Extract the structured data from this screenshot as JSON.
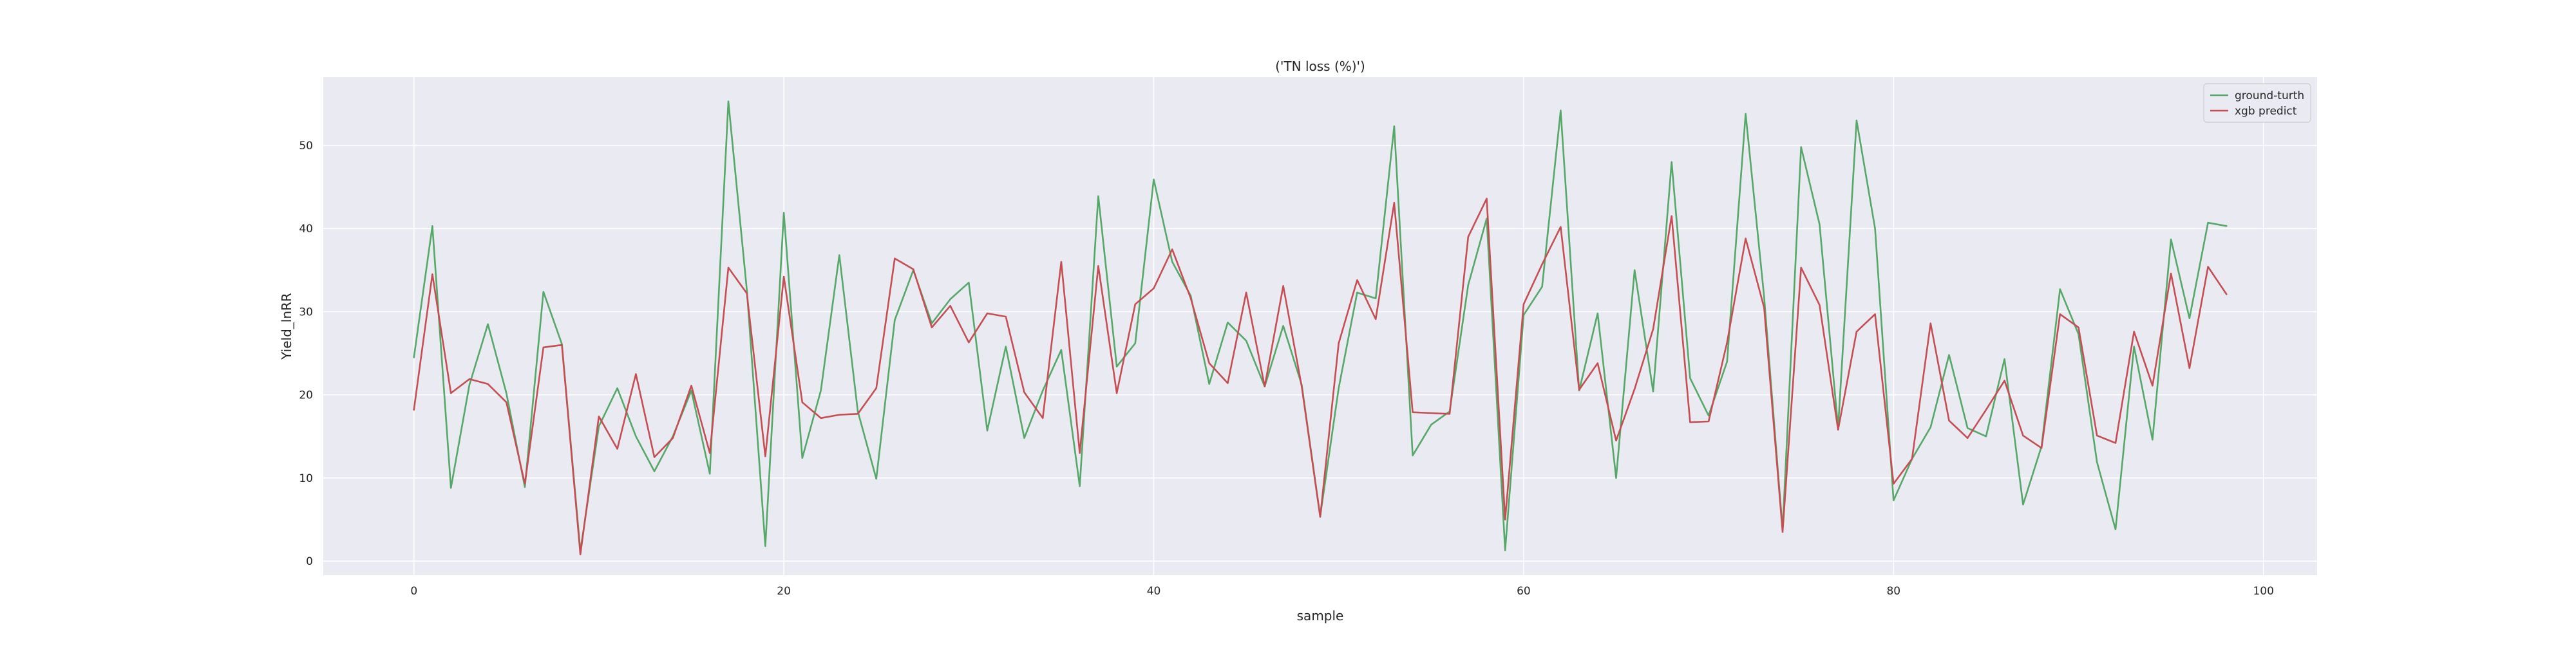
{
  "chart_data": {
    "type": "line",
    "title": "('TN loss (%)')",
    "xlabel": "sample",
    "ylabel": "Yield_lnRR",
    "xlim": [
      -4.9,
      102.9
    ],
    "ylim": [
      -1.7,
      58.2
    ],
    "xticks": [
      0,
      20,
      40,
      60,
      80,
      100
    ],
    "yticks": [
      0,
      10,
      20,
      30,
      40,
      50
    ],
    "grid": true,
    "legend_position": "top-right",
    "background_color": "#eaeaf2",
    "series": [
      {
        "name": "ground-turth",
        "color": "#55a868",
        "x": [
          0,
          1,
          2,
          3,
          4,
          5,
          6,
          7,
          8,
          9,
          10,
          11,
          12,
          13,
          14,
          15,
          16,
          17,
          18,
          19,
          20,
          21,
          22,
          23,
          24,
          25,
          26,
          27,
          28,
          29,
          30,
          31,
          32,
          33,
          34,
          35,
          36,
          37,
          38,
          39,
          40,
          41,
          42,
          43,
          44,
          45,
          46,
          47,
          48,
          49,
          50,
          51,
          52,
          53,
          54,
          55,
          56,
          57,
          58,
          59,
          60,
          61,
          62,
          63,
          64,
          65,
          66,
          67,
          68,
          69,
          70,
          71,
          72,
          73,
          74,
          75,
          76,
          77,
          78,
          79,
          80,
          81,
          82,
          83,
          84,
          85,
          86,
          87,
          88,
          89,
          90,
          91,
          92,
          93,
          94,
          95,
          96,
          97,
          98
        ],
        "values": [
          24.5,
          40.3,
          8.8,
          21.2,
          28.5,
          20.2,
          8.9,
          32.4,
          26.1,
          1.2,
          16.2,
          20.8,
          15.0,
          10.8,
          15.0,
          20.5,
          10.5,
          55.3,
          32.6,
          1.8,
          41.9,
          12.4,
          20.5,
          36.8,
          18.0,
          9.9,
          29.0,
          35.0,
          28.6,
          31.5,
          33.5,
          15.7,
          25.8,
          14.8,
          20.5,
          25.4,
          9.0,
          43.9,
          23.4,
          26.2,
          45.9,
          36.0,
          31.9,
          21.3,
          28.7,
          26.5,
          21.0,
          28.3,
          21.2,
          5.4,
          20.8,
          32.3,
          31.6,
          52.3,
          12.7,
          16.4,
          18.0,
          33.2,
          41.2,
          1.3,
          29.6,
          33.0,
          54.2,
          20.5,
          29.8,
          10.0,
          35.0,
          20.4,
          48.0,
          22.0,
          17.5,
          24.0,
          53.8,
          31.8,
          3.8,
          49.8,
          40.5,
          16.0,
          53.0,
          40.0,
          7.3,
          12.3,
          16.1,
          24.8,
          16.0,
          15.0,
          24.3,
          6.8,
          13.8,
          32.7,
          27.3,
          11.9,
          3.8,
          25.8,
          14.6,
          38.7,
          29.2,
          40.7,
          40.3
        ]
      },
      {
        "name": "xgb predict",
        "color": "#c44e52",
        "x": [
          0,
          1,
          2,
          3,
          4,
          5,
          6,
          7,
          8,
          9,
          10,
          11,
          12,
          13,
          14,
          15,
          16,
          17,
          18,
          19,
          20,
          21,
          22,
          23,
          24,
          25,
          26,
          27,
          28,
          29,
          30,
          31,
          32,
          33,
          34,
          35,
          36,
          37,
          38,
          39,
          40,
          41,
          42,
          43,
          44,
          45,
          46,
          47,
          48,
          49,
          50,
          51,
          52,
          53,
          54,
          55,
          56,
          57,
          58,
          59,
          60,
          61,
          62,
          63,
          64,
          65,
          66,
          67,
          68,
          69,
          70,
          71,
          72,
          73,
          74,
          75,
          76,
          77,
          78,
          79,
          80,
          81,
          82,
          83,
          84,
          85,
          86,
          87,
          88,
          89,
          90,
          91,
          92,
          93,
          94,
          95,
          96,
          97,
          98
        ],
        "values": [
          18.2,
          34.5,
          20.2,
          21.9,
          21.3,
          19.1,
          9.3,
          25.7,
          26.0,
          0.8,
          17.4,
          13.5,
          22.5,
          12.5,
          14.8,
          21.1,
          13.0,
          35.3,
          32.2,
          12.6,
          34.2,
          19.1,
          17.2,
          17.6,
          17.7,
          20.8,
          36.4,
          35.1,
          28.1,
          30.7,
          26.3,
          29.8,
          29.4,
          20.3,
          17.2,
          36.0,
          13.0,
          35.5,
          20.2,
          30.9,
          32.8,
          37.5,
          31.6,
          23.8,
          21.4,
          32.3,
          21.0,
          33.1,
          21.0,
          5.3,
          26.2,
          33.8,
          29.1,
          43.1,
          17.9,
          17.8,
          17.7,
          39.0,
          43.6,
          5.0,
          30.9,
          35.7,
          40.2,
          20.6,
          23.8,
          14.5,
          20.7,
          27.9,
          41.5,
          16.7,
          16.8,
          26.3,
          38.8,
          30.5,
          3.5,
          35.3,
          30.8,
          15.8,
          27.6,
          29.7,
          9.3,
          12.3,
          28.6,
          16.9,
          14.8,
          18.2,
          21.7,
          15.1,
          13.6,
          29.7,
          28.1,
          15.1,
          14.2,
          27.6,
          21.1,
          34.6,
          23.2,
          35.4,
          32.1
        ]
      }
    ]
  }
}
